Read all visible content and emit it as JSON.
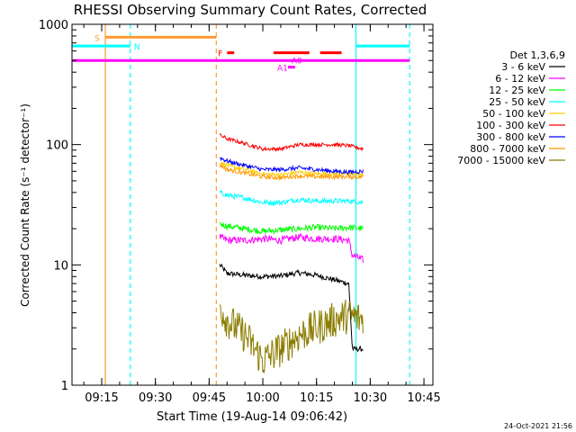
{
  "chart_data": {
    "type": "line",
    "title": "RHESSI Observing Summary Count Rates, Corrected",
    "xlabel": "Start Time (19-Aug-14 09:06:42)",
    "ylabel": "Corrected Count Rate (s⁻¹ detector⁻¹)",
    "y_scale": "log",
    "ylim": [
      1,
      1000
    ],
    "xlim": [
      "09:06:42",
      "10:47:30"
    ],
    "x_ticks": [
      "09:15",
      "09:30",
      "09:45",
      "10:00",
      "10:15",
      "10:30",
      "10:45"
    ],
    "y_ticks": [
      "1",
      "10",
      "100",
      "1000"
    ],
    "grid": false,
    "legend_title": "Det 1,3,6,9",
    "legend_position": "right",
    "timestamp": "24-Oct-2021 21:56",
    "series": [
      {
        "name": "3 - 6 keV",
        "color": "#000000",
        "start": "09:48",
        "end": "10:28",
        "points": [
          [
            "09:48",
            10
          ],
          [
            "09:50",
            8.5
          ],
          [
            "09:55",
            8.2
          ],
          [
            "10:00",
            8.0
          ],
          [
            "10:05",
            8.1
          ],
          [
            "10:10",
            8.6
          ],
          [
            "10:15",
            8.2
          ],
          [
            "10:20",
            7.5
          ],
          [
            "10:24",
            7.0
          ],
          [
            "10:25",
            2.0
          ],
          [
            "10:28",
            2.0
          ]
        ]
      },
      {
        "name": "6 - 12 keV",
        "color": "#ff00ff",
        "start": "09:48",
        "end": "10:28",
        "points": [
          [
            "09:48",
            17
          ],
          [
            "09:50",
            16
          ],
          [
            "09:55",
            16
          ],
          [
            "10:00",
            16.5
          ],
          [
            "10:05",
            16
          ],
          [
            "10:10",
            17
          ],
          [
            "10:15",
            16.5
          ],
          [
            "10:20",
            16.5
          ],
          [
            "10:24",
            16
          ],
          [
            "10:25",
            12
          ],
          [
            "10:28",
            11
          ]
        ]
      },
      {
        "name": "12 - 25 keV",
        "color": "#00ff00",
        "start": "09:48",
        "end": "10:28",
        "points": [
          [
            "09:48",
            22
          ],
          [
            "09:50",
            21
          ],
          [
            "09:55",
            20
          ],
          [
            "10:00",
            19
          ],
          [
            "10:05",
            19.5
          ],
          [
            "10:10",
            20
          ],
          [
            "10:15",
            20.5
          ],
          [
            "10:20",
            20
          ],
          [
            "10:24",
            20.5
          ],
          [
            "10:28",
            20
          ]
        ]
      },
      {
        "name": "25 - 50 keV",
        "color": "#00ffff",
        "start": "09:48",
        "end": "10:28",
        "points": [
          [
            "09:48",
            40
          ],
          [
            "09:50",
            38
          ],
          [
            "09:55",
            36
          ],
          [
            "10:00",
            33
          ],
          [
            "10:05",
            33
          ],
          [
            "10:10",
            35
          ],
          [
            "10:15",
            34
          ],
          [
            "10:20",
            34
          ],
          [
            "10:24",
            34
          ],
          [
            "10:28",
            33
          ]
        ]
      },
      {
        "name": "50 - 100 keV",
        "color": "#ffcc00",
        "start": "09:48",
        "end": "10:28",
        "points": [
          [
            "09:48",
            72
          ],
          [
            "09:50",
            67
          ],
          [
            "09:55",
            62
          ],
          [
            "10:00",
            57
          ],
          [
            "10:05",
            56
          ],
          [
            "10:10",
            59
          ],
          [
            "10:15",
            57
          ],
          [
            "10:20",
            57
          ],
          [
            "10:24",
            57
          ],
          [
            "10:28",
            57
          ]
        ]
      },
      {
        "name": "100 - 300 keV",
        "color": "#ff0000",
        "start": "09:48",
        "end": "10:28",
        "points": [
          [
            "09:48",
            120
          ],
          [
            "09:50",
            112
          ],
          [
            "09:55",
            102
          ],
          [
            "10:00",
            92
          ],
          [
            "10:05",
            92
          ],
          [
            "10:10",
            100
          ],
          [
            "10:15",
            100
          ],
          [
            "10:20",
            100
          ],
          [
            "10:24",
            98
          ],
          [
            "10:28",
            92
          ]
        ]
      },
      {
        "name": "300 - 800 keV",
        "color": "#0000ff",
        "start": "09:48",
        "end": "10:28",
        "points": [
          [
            "09:48",
            78
          ],
          [
            "09:50",
            73
          ],
          [
            "09:55",
            67
          ],
          [
            "10:00",
            62
          ],
          [
            "10:05",
            62
          ],
          [
            "10:10",
            64
          ],
          [
            "10:15",
            62
          ],
          [
            "10:20",
            60
          ],
          [
            "10:24",
            59
          ],
          [
            "10:28",
            60
          ]
        ]
      },
      {
        "name": "800 - 7000 keV",
        "color": "#ff9900",
        "start": "09:48",
        "end": "10:28",
        "points": [
          [
            "09:48",
            68
          ],
          [
            "09:50",
            62
          ],
          [
            "09:55",
            58
          ],
          [
            "10:00",
            54
          ],
          [
            "10:05",
            53
          ],
          [
            "10:10",
            55
          ],
          [
            "10:15",
            54
          ],
          [
            "10:20",
            54
          ],
          [
            "10:24",
            54
          ],
          [
            "10:28",
            54
          ]
        ]
      },
      {
        "name": "7000 - 15000 keV",
        "color": "#8b7d00",
        "start": "09:48",
        "end": "10:28",
        "points": [
          [
            "09:48",
            4.5
          ],
          [
            "09:50",
            3.5
          ],
          [
            "09:55",
            2.6
          ],
          [
            "10:00",
            1.6
          ],
          [
            "10:05",
            2.0
          ],
          [
            "10:10",
            2.6
          ],
          [
            "10:15",
            3.0
          ],
          [
            "10:20",
            3.5
          ],
          [
            "10:24",
            3.8
          ],
          [
            "10:28",
            3.5
          ]
        ]
      }
    ],
    "flag_bars": [
      {
        "label": "S",
        "color": "#ff9933",
        "level": 780,
        "segments": [
          [
            "09:16",
            "09:47"
          ]
        ]
      },
      {
        "label": "N",
        "color": "#00ffff",
        "level": 660,
        "segments": [
          [
            "09:06:42",
            "09:23"
          ],
          [
            "10:26",
            "10:41"
          ]
        ]
      },
      {
        "label": "F",
        "color": "#ff0000",
        "level": 580,
        "segments": [
          [
            "09:50",
            "09:52"
          ],
          [
            "10:03",
            "10:13"
          ],
          [
            "10:16",
            "10:22"
          ]
        ]
      },
      {
        "label": "A0",
        "color": "#ff00ff",
        "level": 500,
        "segments": [
          [
            "09:06:42",
            "10:41"
          ]
        ]
      },
      {
        "label": "A1",
        "color": "#ff00ff",
        "level": 440,
        "segments": [
          [
            "10:07",
            "10:09"
          ]
        ]
      }
    ],
    "vertical_markers": [
      {
        "time": "09:16",
        "color": "#ff9933",
        "style": "solid"
      },
      {
        "time": "09:23",
        "color": "#00ffff",
        "style": "dashed"
      },
      {
        "time": "09:47",
        "color": "#ff9933",
        "style": "dashed"
      },
      {
        "time": "10:26",
        "color": "#00ffff",
        "style": "solid"
      },
      {
        "time": "10:41",
        "color": "#00ffff",
        "style": "dashed"
      }
    ]
  }
}
